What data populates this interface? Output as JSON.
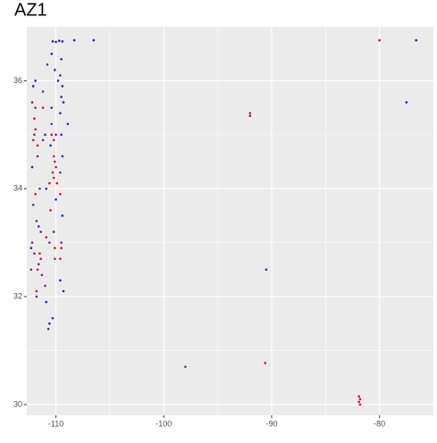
{
  "chart_data": {
    "type": "scatter",
    "title": "AZ1",
    "xlim": [
      -112.7,
      -75.0
    ],
    "ylim": [
      29.8,
      37.0
    ],
    "xticks": [
      -110,
      -100,
      -90,
      -80
    ],
    "yticks": [
      30,
      32,
      34,
      36
    ],
    "x_minor_grid": [
      -105,
      -95,
      -85
    ],
    "y_minor_grid": [
      31,
      33,
      35
    ],
    "grid": true,
    "series": [
      {
        "color": "#2a1fb5",
        "x": [
          -110.3,
          -110,
          -109.7,
          -109.4,
          -108.3,
          -106.5,
          -110.4,
          -109.5,
          -110.1,
          -109.6,
          -111.9,
          -112.1,
          -109.4,
          -109.5,
          -109.3,
          -110.4,
          -109.6,
          -108.9,
          -109.5,
          -110.5,
          -109.4,
          -112.2,
          -110.9,
          -110.0,
          -109.4,
          -111.6,
          -112.3,
          -109.6,
          -109.3,
          -110.9,
          -110.3,
          -110.6,
          -90.5,
          -77.5,
          -76.6,
          -111.0,
          -109.8
        ],
        "values": [
          36.73,
          36.72,
          36.74,
          36.73,
          36.75,
          36.75,
          36.5,
          36.4,
          36.2,
          36.1,
          36.0,
          35.9,
          35.9,
          35.7,
          35.6,
          35.5,
          35.4,
          35.2,
          35.0,
          34.8,
          34.6,
          34.4,
          34.0,
          33.8,
          33.5,
          33.3,
          32.9,
          32.3,
          32.1,
          31.9,
          31.6,
          31.5,
          32.5,
          35.6,
          36.75,
          35.0,
          36.0
        ]
      },
      {
        "color": "#7b2090",
        "x": [
          -111.9,
          -112.0,
          -111.7,
          -111.5,
          -112.1,
          -111.8,
          -112.2,
          -112.0,
          -111.6,
          -111.3,
          -111.0,
          -110.6,
          -110.2,
          -109.5,
          -109.6,
          -110.4,
          -110.0,
          -111.2,
          -110.8,
          -98,
          -92,
          -111.4,
          -112.3,
          -110.1,
          -111.2,
          -111.8,
          -110.7
        ],
        "values": [
          35.5,
          35.0,
          34.6,
          34.0,
          33.7,
          33.4,
          33.0,
          32.8,
          32.6,
          32.4,
          32.2,
          33.0,
          33.2,
          33.0,
          34.3,
          35.2,
          35.0,
          35.8,
          36.3,
          30.7,
          35.35,
          33.2,
          32.5,
          32.7,
          34.9,
          32.0,
          31.4
        ]
      },
      {
        "color": "#d0102a",
        "x": [
          -112.0,
          -111.9,
          -111.7,
          -112.1,
          -110.2,
          -110.1,
          -110.0,
          -110.3,
          -110.2,
          -109.9,
          -109.6,
          -110.4,
          -110.2,
          -111.5,
          -111.7,
          -111.4,
          -109.5,
          -109.6,
          -110.1,
          -111.9,
          -110.5,
          -111.2,
          -111.8,
          -92,
          -90.6,
          -80,
          -81.9,
          -81.8,
          -81.9,
          -81.8,
          -112.2,
          -110.6,
          -110.9
        ],
        "values": [
          35.3,
          35.1,
          34.8,
          34.9,
          34.6,
          34.5,
          34.4,
          34.3,
          34.2,
          34.1,
          33.9,
          35.0,
          34.9,
          32.8,
          32.5,
          32.7,
          32.9,
          32.7,
          32.9,
          33.9,
          33.6,
          35.5,
          32.1,
          35.4,
          30.77,
          36.75,
          30.15,
          30.1,
          30.05,
          30.0,
          35.6,
          34.1,
          33.1
        ]
      }
    ]
  }
}
